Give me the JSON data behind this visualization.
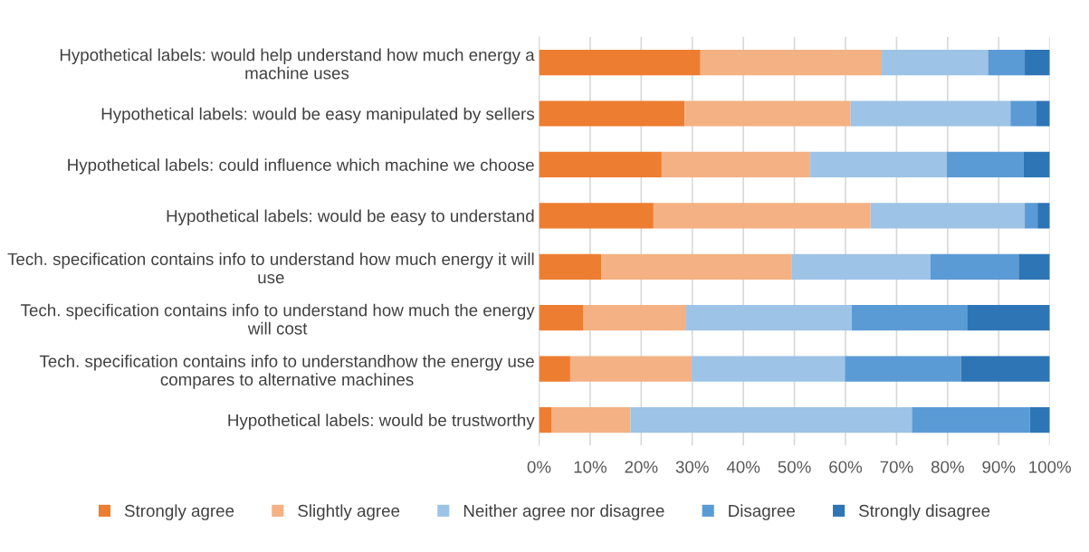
{
  "chart_data": {
    "type": "bar",
    "orientation": "horizontal",
    "stacked": true,
    "categories": [
      "Hypothetical labels: would help understand how much energy a machine uses",
      "Hypothetical labels: would be easy manipulated by sellers",
      "Hypothetical labels: could influence which machine we choose",
      "Hypothetical labels: would be easy to understand",
      "Tech. specification contains info to understand how much energy it will use",
      "Tech. specification contains info to understand how much the energy will cost",
      "Tech. specification contains info to understandhow the energy use compares to alternative machines",
      "Hypothetical labels: would be trustworthy"
    ],
    "series": [
      {
        "name": "Strongly agree",
        "color": "#ed7d31",
        "values": [
          31.6,
          28.5,
          24.0,
          22.4,
          12.2,
          8.6,
          6.1,
          2.4
        ]
      },
      {
        "name": "Slightly agree",
        "color": "#f4b183",
        "values": [
          35.5,
          32.5,
          29.1,
          42.5,
          37.2,
          20.2,
          23.8,
          15.5
        ]
      },
      {
        "name": "Neither agree nor disagree",
        "color": "#9dc3e6",
        "values": [
          20.8,
          31.3,
          26.7,
          30.2,
          27.2,
          32.4,
          30.0,
          55.1
        ]
      },
      {
        "name": "Disagree",
        "color": "#5b9bd5",
        "values": [
          7.2,
          5.1,
          15.1,
          2.5,
          17.3,
          22.6,
          22.7,
          23.1
        ]
      },
      {
        "name": "Strongly disagree",
        "color": "#2e75b6",
        "values": [
          4.9,
          2.6,
          5.1,
          2.4,
          6.1,
          16.2,
          17.4,
          3.9
        ]
      }
    ],
    "xlim": [
      0,
      100
    ],
    "xticks": [
      {
        "value": 0,
        "label": "0%"
      },
      {
        "value": 10,
        "label": "10%"
      },
      {
        "value": 20,
        "label": "20%"
      },
      {
        "value": 30,
        "label": "30%"
      },
      {
        "value": 40,
        "label": "40%"
      },
      {
        "value": 50,
        "label": "50%"
      },
      {
        "value": 60,
        "label": "60%"
      },
      {
        "value": 70,
        "label": "70%"
      },
      {
        "value": 80,
        "label": "80%"
      },
      {
        "value": 90,
        "label": "90%"
      },
      {
        "value": 100,
        "label": "100%"
      }
    ],
    "grid": "x",
    "legend": "bottom"
  }
}
